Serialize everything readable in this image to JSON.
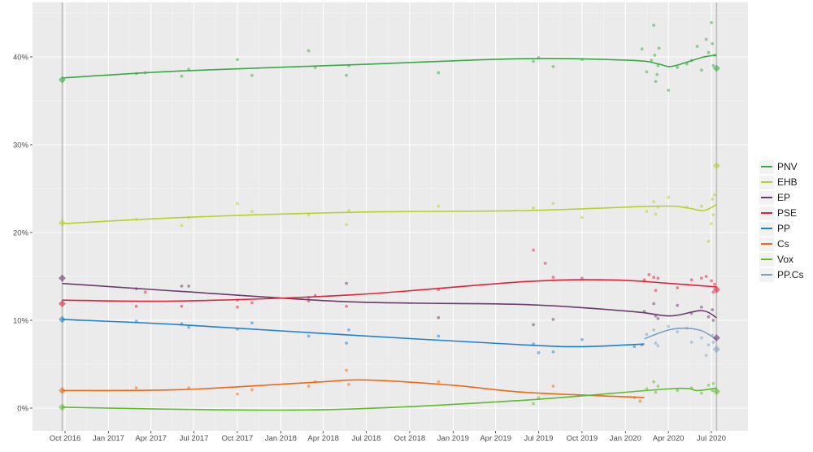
{
  "chart_data": {
    "type": "line",
    "title": "",
    "xlabel": "",
    "ylabel": "",
    "ylim": [
      -2.5,
      46
    ],
    "xlim": [
      "2016-08-10",
      "2020-09-10"
    ],
    "grid": true,
    "legend_position": "right",
    "y_ticks": [
      0,
      10,
      20,
      30,
      40
    ],
    "y_tick_labels": [
      "0%",
      "10%",
      "20%",
      "30%",
      "40%"
    ],
    "x_ticks": [
      "2016-10-01",
      "2017-01-01",
      "2017-04-01",
      "2017-07-01",
      "2017-10-01",
      "2018-01-01",
      "2018-04-01",
      "2018-07-01",
      "2018-10-01",
      "2019-01-01",
      "2019-04-01",
      "2019-07-01",
      "2019-10-01",
      "2020-01-01",
      "2020-04-01",
      "2020-07-01"
    ],
    "x_tick_labels": [
      "Oct 2016",
      "Jan 2017",
      "Apr 2017",
      "Jul 2017",
      "Oct 2017",
      "Jan 2018",
      "Apr 2018",
      "Jul 2018",
      "Oct 2018",
      "Jan 2019",
      "Apr 2019",
      "Jul 2019",
      "Oct 2019",
      "Jan 2020",
      "Apr 2020",
      "Jul 2020"
    ],
    "election_dates": [
      "2016-09-25",
      "2020-07-12"
    ],
    "series": [
      {
        "name": "PNV",
        "color": "#3aa845",
        "trend": [
          [
            "2016-09-25",
            37.6
          ],
          [
            "2017-06-01",
            38.4
          ],
          [
            "2018-06-01",
            39.1
          ],
          [
            "2019-06-01",
            39.8
          ],
          [
            "2020-01-15",
            39.6
          ],
          [
            "2020-03-10",
            39.2
          ],
          [
            "2020-04-05",
            38.9
          ],
          [
            "2020-05-10",
            39.4
          ],
          [
            "2020-06-15",
            40.0
          ],
          [
            "2020-07-12",
            40.2
          ]
        ],
        "polls": [
          [
            "2017-03-01",
            38.1
          ],
          [
            "2017-03-20",
            38.2
          ],
          [
            "2017-06-05",
            37.8
          ],
          [
            "2017-06-20",
            38.6
          ],
          [
            "2017-10-01",
            39.7
          ],
          [
            "2017-11-01",
            37.9
          ],
          [
            "2018-03-01",
            40.7
          ],
          [
            "2018-03-15",
            38.8
          ],
          [
            "2018-05-20",
            37.9
          ],
          [
            "2018-05-25",
            39.0
          ],
          [
            "2018-12-01",
            38.2
          ],
          [
            "2019-06-20",
            39.5
          ],
          [
            "2019-07-01",
            39.9
          ],
          [
            "2019-08-01",
            38.9
          ],
          [
            "2019-10-01",
            39.7
          ],
          [
            "2020-02-05",
            40.9
          ],
          [
            "2020-02-15",
            38.3
          ],
          [
            "2020-02-25",
            39.6
          ],
          [
            "2020-03-01",
            43.6
          ],
          [
            "2020-03-03",
            40.2
          ],
          [
            "2020-03-05",
            37.2
          ],
          [
            "2020-03-08",
            38.0
          ],
          [
            "2020-03-10",
            39.0
          ],
          [
            "2020-03-12",
            41.0
          ],
          [
            "2020-04-01",
            36.2
          ],
          [
            "2020-04-20",
            38.8
          ],
          [
            "2020-05-10",
            39.2
          ],
          [
            "2020-05-20",
            39.6
          ],
          [
            "2020-06-01",
            41.2
          ],
          [
            "2020-06-10",
            38.5
          ],
          [
            "2020-06-20",
            42.0
          ],
          [
            "2020-06-25",
            40.5
          ],
          [
            "2020-07-01",
            43.9
          ],
          [
            "2020-07-03",
            41.5
          ],
          [
            "2020-07-05",
            39.0
          ],
          [
            "2020-07-08",
            40.2
          ]
        ],
        "result": [
          [
            "2016-09-25",
            37.4
          ],
          [
            "2020-07-12",
            38.7
          ]
        ]
      },
      {
        "name": "EHB",
        "color": "#b6d22a",
        "trend": [
          [
            "2016-09-25",
            21.0
          ],
          [
            "2017-06-01",
            21.7
          ],
          [
            "2018-06-01",
            22.3
          ],
          [
            "2019-06-01",
            22.5
          ],
          [
            "2020-03-10",
            23.0
          ],
          [
            "2020-05-10",
            22.8
          ],
          [
            "2020-06-15",
            22.5
          ],
          [
            "2020-07-12",
            23.2
          ]
        ],
        "polls": [
          [
            "2017-03-01",
            21.5
          ],
          [
            "2017-06-05",
            20.8
          ],
          [
            "2017-06-20",
            21.7
          ],
          [
            "2017-10-01",
            23.3
          ],
          [
            "2017-11-01",
            22.4
          ],
          [
            "2018-03-01",
            22.0
          ],
          [
            "2018-05-20",
            20.9
          ],
          [
            "2018-05-25",
            22.5
          ],
          [
            "2018-12-01",
            23.0
          ],
          [
            "2019-06-20",
            22.8
          ],
          [
            "2019-08-01",
            23.3
          ],
          [
            "2019-10-01",
            21.7
          ],
          [
            "2020-02-15",
            22.4
          ],
          [
            "2020-03-01",
            23.5
          ],
          [
            "2020-03-05",
            22.1
          ],
          [
            "2020-03-10",
            22.9
          ],
          [
            "2020-04-01",
            24.0
          ],
          [
            "2020-05-10",
            22.9
          ],
          [
            "2020-06-10",
            23.0
          ],
          [
            "2020-06-25",
            19.0
          ],
          [
            "2020-07-01",
            21.0
          ],
          [
            "2020-07-03",
            23.8
          ],
          [
            "2020-07-05",
            22.0
          ],
          [
            "2020-07-08",
            24.3
          ]
        ],
        "result": [
          [
            "2016-09-25",
            21.1
          ],
          [
            "2020-07-12",
            27.6
          ]
        ]
      },
      {
        "name": "EP",
        "color": "#6b3a6b",
        "trend": [
          [
            "2016-09-25",
            14.2
          ],
          [
            "2017-06-01",
            13.3
          ],
          [
            "2018-06-01",
            12.1
          ],
          [
            "2019-06-01",
            11.8
          ],
          [
            "2020-01-15",
            11.0
          ],
          [
            "2020-04-05",
            10.5
          ],
          [
            "2020-06-10",
            11.1
          ],
          [
            "2020-07-12",
            10.3
          ]
        ],
        "polls": [
          [
            "2017-03-01",
            13.6
          ],
          [
            "2017-06-05",
            13.9
          ],
          [
            "2017-06-20",
            13.9
          ],
          [
            "2017-10-01",
            12.3
          ],
          [
            "2018-03-01",
            12.6
          ],
          [
            "2018-03-15",
            12.8
          ],
          [
            "2018-05-20",
            14.2
          ],
          [
            "2018-12-01",
            10.3
          ],
          [
            "2019-06-20",
            9.5
          ],
          [
            "2019-08-01",
            10.1
          ],
          [
            "2020-02-10",
            11.0
          ],
          [
            "2020-03-01",
            11.9
          ],
          [
            "2020-03-05",
            10.5
          ],
          [
            "2020-03-10",
            10.2
          ],
          [
            "2020-04-20",
            11.7
          ],
          [
            "2020-05-20",
            10.8
          ],
          [
            "2020-06-10",
            11.5
          ],
          [
            "2020-06-25",
            10.4
          ],
          [
            "2020-07-03",
            11.2
          ],
          [
            "2020-07-05",
            10.0
          ]
        ],
        "result": [
          [
            "2016-09-25",
            14.8
          ],
          [
            "2020-07-12",
            8.0
          ]
        ]
      },
      {
        "name": "PSE",
        "color": "#e3203b",
        "trend": [
          [
            "2016-09-25",
            12.3
          ],
          [
            "2017-06-01",
            12.2
          ],
          [
            "2018-06-01",
            12.9
          ],
          [
            "2019-06-01",
            14.4
          ],
          [
            "2019-12-01",
            14.6
          ],
          [
            "2020-04-05",
            14.2
          ],
          [
            "2020-07-12",
            13.8
          ]
        ],
        "polls": [
          [
            "2017-03-01",
            11.6
          ],
          [
            "2017-03-20",
            13.2
          ],
          [
            "2017-06-05",
            11.6
          ],
          [
            "2017-10-01",
            11.5
          ],
          [
            "2017-11-01",
            12.0
          ],
          [
            "2018-03-01",
            12.2
          ],
          [
            "2018-05-20",
            11.6
          ],
          [
            "2018-12-01",
            13.5
          ],
          [
            "2019-06-20",
            18.0
          ],
          [
            "2019-07-15",
            16.5
          ],
          [
            "2019-08-01",
            14.9
          ],
          [
            "2019-10-01",
            14.8
          ],
          [
            "2020-02-10",
            14.6
          ],
          [
            "2020-02-20",
            15.2
          ],
          [
            "2020-03-01",
            14.9
          ],
          [
            "2020-03-05",
            13.4
          ],
          [
            "2020-03-10",
            14.8
          ],
          [
            "2020-04-20",
            13.7
          ],
          [
            "2020-05-20",
            14.6
          ],
          [
            "2020-06-10",
            14.8
          ],
          [
            "2020-06-20",
            15.0
          ],
          [
            "2020-07-01",
            14.5
          ],
          [
            "2020-07-05",
            13.2
          ],
          [
            "2020-07-08",
            14.1
          ]
        ],
        "result": [
          [
            "2016-09-25",
            11.9
          ],
          [
            "2020-07-12",
            13.5
          ]
        ]
      },
      {
        "name": "PP",
        "color": "#1f7fcf",
        "trend": [
          [
            "2016-09-25",
            10.1
          ],
          [
            "2017-06-01",
            9.5
          ],
          [
            "2018-06-01",
            8.3
          ],
          [
            "2019-06-01",
            7.2
          ],
          [
            "2019-10-01",
            7.0
          ],
          [
            "2020-02-10",
            7.3
          ]
        ],
        "polls": [
          [
            "2017-03-01",
            9.9
          ],
          [
            "2017-06-05",
            9.6
          ],
          [
            "2017-06-20",
            9.2
          ],
          [
            "2017-10-01",
            9.0
          ],
          [
            "2017-11-01",
            9.7
          ],
          [
            "2018-03-01",
            8.2
          ],
          [
            "2018-05-20",
            7.4
          ],
          [
            "2018-05-25",
            8.9
          ],
          [
            "2018-12-01",
            8.2
          ],
          [
            "2019-06-20",
            7.3
          ],
          [
            "2019-07-01",
            6.3
          ],
          [
            "2019-08-01",
            6.4
          ],
          [
            "2019-10-01",
            7.8
          ],
          [
            "2020-01-20",
            7.0
          ],
          [
            "2020-02-05",
            7.2
          ]
        ],
        "result": [
          [
            "2016-09-25",
            10.1
          ]
        ]
      },
      {
        "name": "Cs",
        "color": "#ea6a16",
        "trend": [
          [
            "2016-09-25",
            2.0
          ],
          [
            "2017-06-01",
            2.1
          ],
          [
            "2018-03-01",
            2.9
          ],
          [
            "2018-07-01",
            3.2
          ],
          [
            "2019-01-01",
            2.6
          ],
          [
            "2019-06-01",
            1.8
          ],
          [
            "2020-02-10",
            1.2
          ]
        ],
        "polls": [
          [
            "2017-03-01",
            2.3
          ],
          [
            "2017-06-20",
            2.3
          ],
          [
            "2017-10-01",
            1.6
          ],
          [
            "2017-11-01",
            2.1
          ],
          [
            "2018-03-01",
            2.5
          ],
          [
            "2018-03-15",
            3.0
          ],
          [
            "2018-05-20",
            4.3
          ],
          [
            "2018-05-25",
            2.7
          ],
          [
            "2018-12-01",
            3.0
          ],
          [
            "2019-08-01",
            2.5
          ],
          [
            "2020-01-20",
            1.2
          ],
          [
            "2020-02-01",
            0.8
          ]
        ],
        "result": [
          [
            "2016-09-25",
            2.0
          ]
        ]
      },
      {
        "name": "Vox",
        "color": "#5fba2e",
        "trend": [
          [
            "2016-09-25",
            0.1
          ],
          [
            "2017-09-01",
            -0.2
          ],
          [
            "2018-06-01",
            -0.1
          ],
          [
            "2019-06-01",
            0.9
          ],
          [
            "2020-04-05",
            2.2
          ],
          [
            "2020-06-01",
            2.0
          ],
          [
            "2020-07-12",
            2.3
          ]
        ],
        "polls": [
          [
            "2019-06-20",
            0.5
          ],
          [
            "2019-07-01",
            1.2
          ],
          [
            "2020-02-15",
            2.2
          ],
          [
            "2020-03-01",
            3.0
          ],
          [
            "2020-03-05",
            1.8
          ],
          [
            "2020-03-10",
            2.5
          ],
          [
            "2020-04-20",
            2.0
          ],
          [
            "2020-05-20",
            2.3
          ],
          [
            "2020-06-10",
            1.7
          ],
          [
            "2020-06-25",
            2.6
          ],
          [
            "2020-07-03",
            2.0
          ],
          [
            "2020-07-05",
            2.8
          ]
        ],
        "result": [
          [
            "2016-09-25",
            0.1
          ],
          [
            "2020-07-12",
            1.9
          ]
        ]
      },
      {
        "name": "PP.Cs",
        "color": "#7da2c2",
        "trend": [
          [
            "2020-02-10",
            7.9
          ],
          [
            "2020-04-10",
            9.0
          ],
          [
            "2020-06-05",
            8.9
          ],
          [
            "2020-07-12",
            7.8
          ]
        ],
        "polls": [
          [
            "2020-02-15",
            8.4
          ],
          [
            "2020-03-01",
            8.9
          ],
          [
            "2020-03-05",
            7.4
          ],
          [
            "2020-03-10",
            7.1
          ],
          [
            "2020-04-01",
            9.3
          ],
          [
            "2020-04-20",
            8.7
          ],
          [
            "2020-05-10",
            9.1
          ],
          [
            "2020-05-20",
            7.5
          ],
          [
            "2020-06-10",
            8.0
          ],
          [
            "2020-06-20",
            6.0
          ],
          [
            "2020-06-25",
            7.2
          ],
          [
            "2020-07-03",
            8.3
          ],
          [
            "2020-07-05",
            7.5
          ]
        ],
        "result": [
          [
            "2020-07-12",
            6.7
          ]
        ]
      }
    ]
  }
}
